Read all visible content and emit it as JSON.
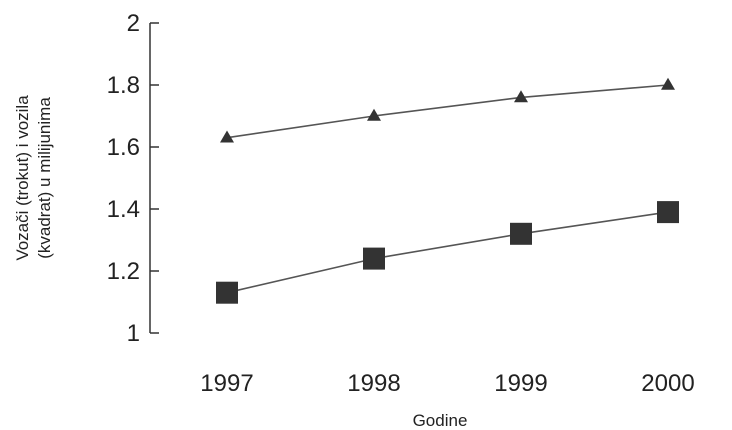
{
  "chart_data": {
    "type": "line",
    "x": [
      "1997",
      "1998",
      "1999",
      "2000"
    ],
    "series": [
      {
        "marker": "triangle",
        "values": [
          1.63,
          1.7,
          1.76,
          1.8
        ],
        "color": "#333333"
      },
      {
        "marker": "square",
        "values": [
          1.13,
          1.24,
          1.32,
          1.39
        ],
        "color": "#333333"
      }
    ],
    "ylim": [
      1,
      2
    ],
    "yticks": [
      "1",
      "1.2",
      "1.4",
      "1.6",
      "1.8",
      "2"
    ],
    "xlabel": "Godine",
    "ylabel_lines": [
      "Vozači (trokut) i vozila",
      "(kvadrat) u milijunima"
    ],
    "grid": false,
    "legend": "none"
  }
}
